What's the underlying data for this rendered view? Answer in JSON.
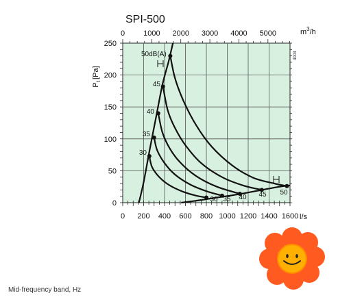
{
  "chart_data": {
    "type": "line",
    "title": "SPI-500",
    "ylabel_main": "P",
    "ylabel_sub": "t",
    "ylabel_unit": "[Pa]",
    "xlabel_bottom_unit": "l/s",
    "xlabel_top_unit_base": "m",
    "xlabel_top_unit_exp": "3",
    "xlabel_top_unit_rest": "/h",
    "xlim": [
      0,
      1600
    ],
    "ylim": [
      0,
      250
    ],
    "top_xlim_m3h": [
      0,
      5760
    ],
    "x_ticks": [
      "0",
      "200",
      "400",
      "600",
      "800",
      "1000",
      "1200",
      "1400",
      "1600"
    ],
    "y_ticks": [
      "0",
      "50",
      "100",
      "150",
      "200",
      "250"
    ],
    "top_ticks": [
      "0",
      "1000",
      "2000",
      "3000",
      "4000",
      "5000"
    ],
    "grid": true,
    "background": "#d7f0df",
    "series": [
      {
        "label": "30",
        "points": [
          [
            255,
            73
          ],
          [
            280,
            56
          ],
          [
            350,
            40
          ],
          [
            450,
            27
          ],
          [
            580,
            17
          ],
          [
            700,
            11
          ],
          [
            800,
            8
          ]
        ]
      },
      {
        "label": "35",
        "points": [
          [
            300,
            102
          ],
          [
            330,
            82
          ],
          [
            400,
            62
          ],
          [
            500,
            44
          ],
          [
            650,
            28
          ],
          [
            800,
            18
          ],
          [
            950,
            11
          ]
        ]
      },
      {
        "label": "40",
        "points": [
          [
            340,
            140
          ],
          [
            380,
            110
          ],
          [
            450,
            85
          ],
          [
            550,
            63
          ],
          [
            700,
            42
          ],
          [
            900,
            25
          ],
          [
            1120,
            14
          ]
        ]
      },
      {
        "label": "45",
        "points": [
          [
            385,
            182
          ],
          [
            430,
            145
          ],
          [
            500,
            117
          ],
          [
            600,
            90
          ],
          [
            750,
            62
          ],
          [
            950,
            40
          ],
          [
            1150,
            27
          ],
          [
            1330,
            20
          ]
        ]
      },
      {
        "label": "50dB(A)",
        "points": [
          [
            455,
            230
          ],
          [
            500,
            195
          ],
          [
            580,
            160
          ],
          [
            700,
            122
          ],
          [
            850,
            88
          ],
          [
            1050,
            58
          ],
          [
            1250,
            39
          ],
          [
            1450,
            30
          ],
          [
            1570,
            26
          ]
        ]
      }
    ],
    "system_curve": {
      "label": "",
      "points": [
        [
          155,
          0
        ],
        [
          200,
          32
        ],
        [
          260,
          85
        ],
        [
          320,
          135
        ],
        [
          380,
          185
        ],
        [
          440,
          222
        ],
        [
          480,
          250
        ]
      ]
    },
    "min_curve": {
      "label": "",
      "points": [
        [
          560,
          0
        ],
        [
          700,
          3
        ],
        [
          900,
          8
        ],
        [
          1100,
          13
        ],
        [
          1300,
          19
        ],
        [
          1500,
          25
        ],
        [
          1600,
          27
        ]
      ]
    },
    "label_texts": {
      "header_label": "50dB(A)",
      "left_labels": [
        "45",
        "40",
        "35",
        "30"
      ],
      "bottom_labels": [
        "30",
        "35",
        "40",
        "45",
        "50"
      ]
    },
    "side_code": "4003"
  },
  "caption": "Mid-frequency band, Hz"
}
